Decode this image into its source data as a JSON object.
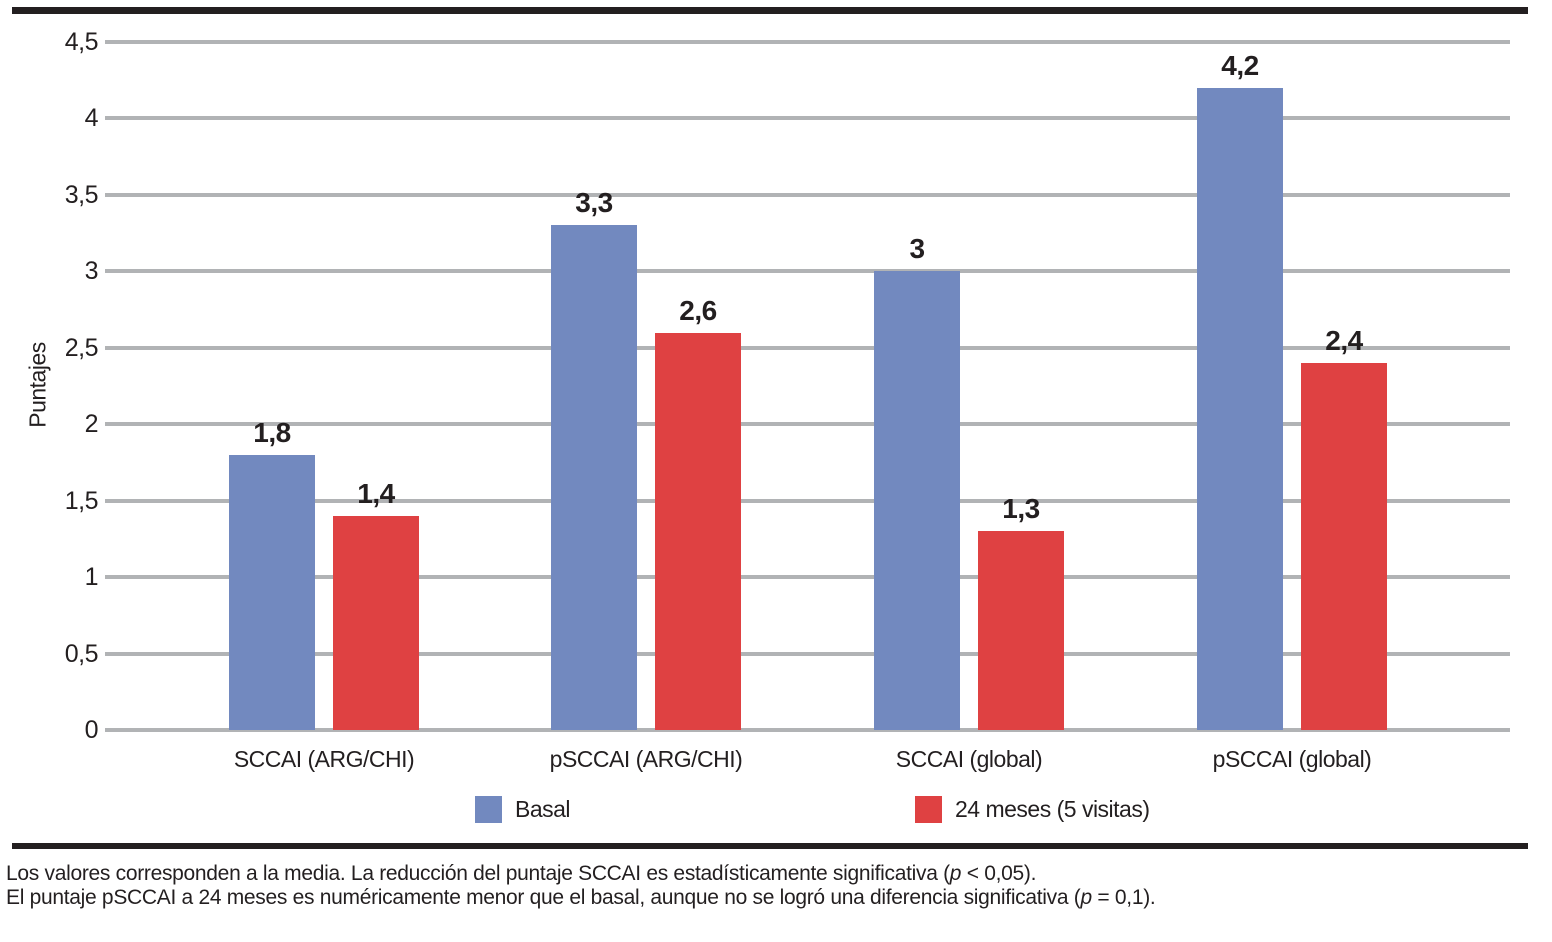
{
  "chart_data": {
    "type": "bar",
    "title": "",
    "xlabel": "",
    "ylabel": "Puntajes",
    "ylim": [
      0,
      4.5
    ],
    "ytick_step": 0.5,
    "grid": true,
    "legend_position": "bottom",
    "yticks": [
      {
        "value": 0,
        "label": "0"
      },
      {
        "value": 0.5,
        "label": "0,5"
      },
      {
        "value": 1,
        "label": "1"
      },
      {
        "value": 1.5,
        "label": "1,5"
      },
      {
        "value": 2,
        "label": "2"
      },
      {
        "value": 2.5,
        "label": "2,5"
      },
      {
        "value": 3,
        "label": "3"
      },
      {
        "value": 3.5,
        "label": "3,5"
      },
      {
        "value": 4,
        "label": "4"
      },
      {
        "value": 4.5,
        "label": "4,5"
      }
    ],
    "categories": [
      "SCCAI (ARG/CHI)",
      "pSCCAI (ARG/CHI)",
      "SCCAI (global)",
      "pSCCAI (global)"
    ],
    "series": [
      {
        "name": "Basal",
        "color": "#7289bf",
        "values": [
          1.8,
          3.3,
          3,
          4.2
        ],
        "value_labels": [
          "1,8",
          "3,3",
          "3",
          "4,2"
        ]
      },
      {
        "name": "24 meses (5 visitas)",
        "color": "#df4142",
        "values": [
          1.4,
          2.6,
          1.3,
          2.4
        ],
        "value_labels": [
          "1,4",
          "2,6",
          "1,3",
          "2,4"
        ]
      }
    ]
  },
  "colors": {
    "grid": "#b1b3b5",
    "rule": "#231f20",
    "text": "#231f20"
  },
  "footnotes": [
    [
      {
        "text": "Los valores corresponden a la media. La reducción del puntaje SCCAI es estadísticamente significativa (",
        "italic": false
      },
      {
        "text": "p",
        "italic": true
      },
      {
        "text": " < 0,05).",
        "italic": false
      }
    ],
    [
      {
        "text": "El puntaje pSCCAI a 24 meses es numéricamente menor que el basal, aunque no se logró una diferencia significativa (",
        "italic": false
      },
      {
        "text": "p",
        "italic": true
      },
      {
        "text": " = 0,1).",
        "italic": false
      }
    ]
  ]
}
